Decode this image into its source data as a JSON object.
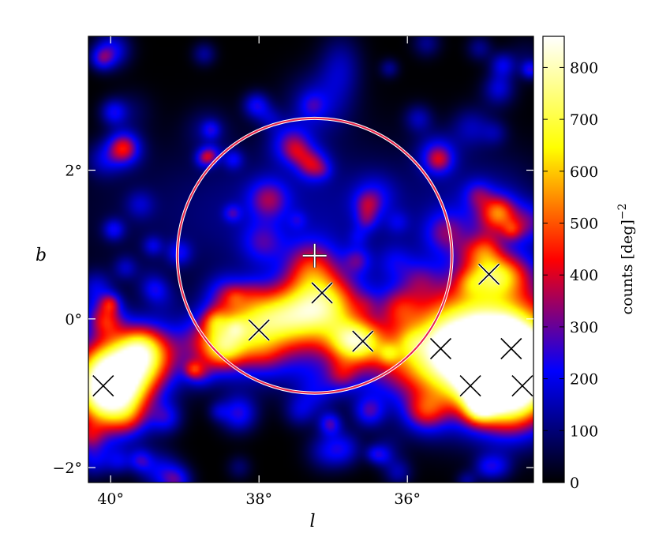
{
  "chart_data": {
    "type": "heatmap",
    "title": "",
    "xlabel": "l",
    "ylabel": "b",
    "x_unit": "deg",
    "y_unit": "deg",
    "xlim": [
      40.3,
      34.3
    ],
    "ylim": [
      -2.2,
      3.8
    ],
    "x_ticks": [
      40,
      38,
      36
    ],
    "x_tick_labels": [
      "40°",
      "38°",
      "36°"
    ],
    "y_ticks": [
      2,
      0,
      -2
    ],
    "y_tick_labels": [
      "2°",
      "0°",
      "−2°"
    ],
    "colorbar": {
      "label": "counts [deg]",
      "label_exponent": "−2",
      "range": [
        0,
        860
      ],
      "ticks": [
        800,
        700,
        600,
        500,
        400,
        300,
        200,
        100,
        0
      ],
      "tick_labels": [
        "800",
        "700",
        "600",
        "500",
        "400",
        "300",
        "200",
        "100",
        "0"
      ],
      "colormap": [
        "#000000",
        "#0000ff",
        "#ff0000",
        "#ffff00",
        "#ffffff"
      ]
    },
    "grid": false,
    "emission_regions": [
      {
        "l": 40.0,
        "b": -0.9,
        "sigma_l": 0.35,
        "sigma_b": 0.4,
        "value": 1100
      },
      {
        "l": 35.0,
        "b": -0.4,
        "sigma_l": 0.75,
        "sigma_b": 0.55,
        "value": 1100
      },
      {
        "l": 34.6,
        "b": -0.9,
        "sigma_l": 0.35,
        "sigma_b": 0.4,
        "value": 700
      },
      {
        "l": 37.8,
        "b": 0.0,
        "sigma_l": 0.5,
        "sigma_b": 0.3,
        "value": 650
      },
      {
        "l": 37.1,
        "b": 0.2,
        "sigma_l": 0.35,
        "sigma_b": 0.3,
        "value": 500
      },
      {
        "l": 36.7,
        "b": -0.3,
        "sigma_l": 0.25,
        "sigma_b": 0.2,
        "value": 550
      },
      {
        "l": 38.5,
        "b": -0.3,
        "sigma_l": 0.35,
        "sigma_b": 0.25,
        "value": 400
      },
      {
        "l": 37.3,
        "b": 0.7,
        "sigma_l": 0.25,
        "sigma_b": 0.25,
        "value": 300
      },
      {
        "l": 34.8,
        "b": 0.6,
        "sigma_l": 0.3,
        "sigma_b": 0.2,
        "value": 450
      },
      {
        "l": 39.5,
        "b": -0.5,
        "sigma_l": 0.3,
        "sigma_b": 0.3,
        "value": 400
      },
      {
        "l": 37.0,
        "b": -0.6,
        "sigma_l": 1.6,
        "sigma_b": 0.3,
        "value": 160
      },
      {
        "l": 37.5,
        "b": 1.4,
        "sigma_l": 1.8,
        "sigma_b": 0.7,
        "value": 130
      },
      {
        "l": 37.2,
        "b": 2.9,
        "sigma_l": 0.3,
        "sigma_b": 0.3,
        "value": 150
      },
      {
        "l": 36.9,
        "b": 3.4,
        "sigma_l": 0.2,
        "sigma_b": 0.3,
        "value": 140
      },
      {
        "l": 34.9,
        "b": 1.4,
        "sigma_l": 0.5,
        "sigma_b": 0.5,
        "value": 120
      }
    ],
    "circle": {
      "center_l": 37.25,
      "center_b": 0.85,
      "radius_deg": 1.85,
      "color": "#e8254b"
    },
    "plus_marker": {
      "l": 37.25,
      "b": 0.85,
      "color": "#ffffff"
    },
    "x_markers": [
      {
        "l": 40.1,
        "b": -0.9
      },
      {
        "l": 38.0,
        "b": -0.15
      },
      {
        "l": 37.15,
        "b": 0.35
      },
      {
        "l": 36.6,
        "b": -0.3
      },
      {
        "l": 35.55,
        "b": -0.4
      },
      {
        "l": 35.15,
        "b": -0.9
      },
      {
        "l": 34.9,
        "b": 0.6
      },
      {
        "l": 34.6,
        "b": -0.4
      },
      {
        "l": 34.45,
        "b": -0.9
      }
    ]
  }
}
